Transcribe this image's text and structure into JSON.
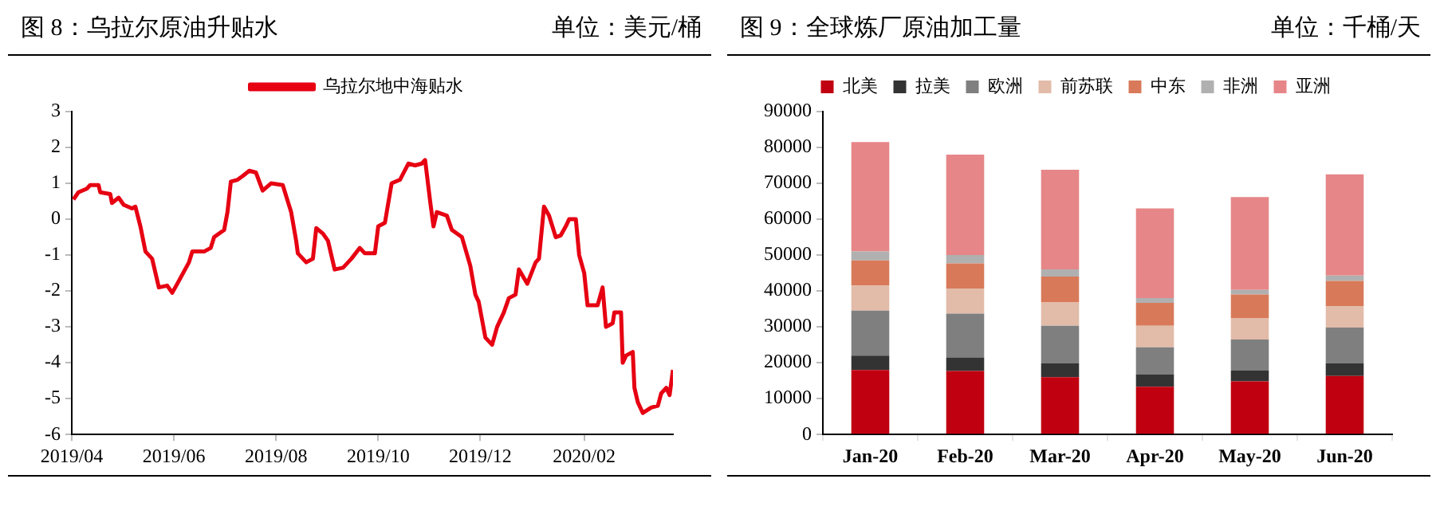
{
  "chart_data": [
    {
      "type": "line",
      "title": "图 8：乌拉尔原油升贴水",
      "subtitle": "单位：美元/桶",
      "legend": "top",
      "grid": false,
      "marker": "none",
      "line_style": "solid",
      "xlim": [
        "2019-04-01",
        "2020-03-25"
      ],
      "xticks": [
        {
          "value": "2019-04-01",
          "label": "2019/04"
        },
        {
          "value": "2019-06-01",
          "label": "2019/06"
        },
        {
          "value": "2019-08-01",
          "label": "2019/08"
        },
        {
          "value": "2019-10-01",
          "label": "2019/10"
        },
        {
          "value": "2019-12-01",
          "label": "2019/12"
        },
        {
          "value": "2020-02-01",
          "label": "2020/02"
        }
      ],
      "ylim": [
        -6,
        3
      ],
      "yticks": [
        -6,
        -5,
        -4,
        -3,
        -2,
        -1,
        0,
        1,
        2,
        3
      ],
      "series": [
        {
          "name": "乌拉尔地中海贴水",
          "color": "#e60012",
          "x": [
            "2019-04-02",
            "2019-04-05",
            "2019-04-10",
            "2019-04-12",
            "2019-04-17",
            "2019-04-18",
            "2019-04-24",
            "2019-04-25",
            "2019-04-29",
            "2019-05-02",
            "2019-05-07",
            "2019-05-09",
            "2019-05-12",
            "2019-05-15",
            "2019-05-19",
            "2019-05-23",
            "2019-05-28",
            "2019-05-31",
            "2019-06-03",
            "2019-06-10",
            "2019-06-12",
            "2019-06-19",
            "2019-06-23",
            "2019-06-25",
            "2019-07-01",
            "2019-07-03",
            "2019-07-05",
            "2019-07-09",
            "2019-07-12",
            "2019-07-16",
            "2019-07-20",
            "2019-07-24",
            "2019-07-29",
            "2019-08-05",
            "2019-08-10",
            "2019-08-13",
            "2019-08-14",
            "2019-08-19",
            "2019-08-23",
            "2019-08-25",
            "2019-08-29",
            "2019-09-01",
            "2019-09-05",
            "2019-09-10",
            "2019-09-15",
            "2019-09-20",
            "2019-09-23",
            "2019-09-29",
            "2019-10-01",
            "2019-10-05",
            "2019-10-09",
            "2019-10-14",
            "2019-10-19",
            "2019-10-23",
            "2019-10-27",
            "2019-10-29",
            "2019-11-01",
            "2019-11-03",
            "2019-11-05",
            "2019-11-11",
            "2019-11-14",
            "2019-11-20",
            "2019-11-25",
            "2019-11-28",
            "2019-11-30",
            "2019-12-04",
            "2019-12-08",
            "2019-12-11",
            "2019-12-15",
            "2019-12-18",
            "2019-12-22",
            "2019-12-24",
            "2019-12-29",
            "2020-01-03",
            "2020-01-05",
            "2020-01-08",
            "2020-01-11",
            "2020-01-15",
            "2020-01-18",
            "2020-01-21",
            "2020-01-23",
            "2020-01-27",
            "2020-01-29",
            "2020-02-01",
            "2020-02-03",
            "2020-02-09",
            "2020-02-12",
            "2020-02-14",
            "2020-02-18",
            "2020-02-19",
            "2020-02-23",
            "2020-02-24",
            "2020-02-26",
            "2020-03-01",
            "2020-03-02",
            "2020-03-04",
            "2020-03-07",
            "2020-03-12",
            "2020-03-16",
            "2020-03-18",
            "2020-03-21",
            "2020-03-23",
            "2020-03-25"
          ],
          "values": [
            0.55,
            0.75,
            0.85,
            0.95,
            0.95,
            0.75,
            0.7,
            0.45,
            0.6,
            0.4,
            0.3,
            0.35,
            -0.2,
            -0.9,
            -1.1,
            -1.9,
            -1.85,
            -2.05,
            -1.8,
            -1.2,
            -0.9,
            -0.9,
            -0.8,
            -0.5,
            -0.3,
            0.2,
            1.05,
            1.1,
            1.2,
            1.35,
            1.3,
            0.8,
            1.0,
            0.95,
            0.2,
            -0.6,
            -0.95,
            -1.2,
            -1.1,
            -0.25,
            -0.4,
            -0.6,
            -1.4,
            -1.35,
            -1.1,
            -0.8,
            -0.95,
            -0.95,
            -0.2,
            -0.1,
            1.0,
            1.1,
            1.55,
            1.5,
            1.55,
            1.65,
            0.5,
            -0.2,
            0.2,
            0.1,
            -0.3,
            -0.5,
            -1.3,
            -2.1,
            -2.3,
            -3.3,
            -3.5,
            -3.0,
            -2.6,
            -2.2,
            -2.1,
            -1.4,
            -1.8,
            -1.2,
            -1.1,
            0.35,
            0.1,
            -0.5,
            -0.45,
            -0.2,
            0.0,
            0.0,
            -1.0,
            -1.5,
            -2.4,
            -2.4,
            -1.9,
            -3.0,
            -2.9,
            -2.6,
            -2.6,
            -4.0,
            -3.8,
            -3.7,
            -4.7,
            -5.1,
            -5.4,
            -5.25,
            -5.2,
            -4.85,
            -4.7,
            -4.9,
            -4.2
          ]
        }
      ]
    },
    {
      "type": "bar",
      "stacked": true,
      "title": "图 9：全球炼厂原油加工量",
      "subtitle": "单位：千桶/天",
      "legend": "top",
      "grid": false,
      "categories": [
        "Jan-20",
        "Feb-20",
        "Mar-20",
        "Apr-20",
        "May-20",
        "Jun-20"
      ],
      "ylim": [
        0,
        90000
      ],
      "yticks": [
        0,
        10000,
        20000,
        30000,
        40000,
        50000,
        60000,
        70000,
        80000,
        90000
      ],
      "series": [
        {
          "name": "北美",
          "color": "#c00010",
          "values": [
            18000,
            17700,
            16000,
            13300,
            14800,
            16300
          ]
        },
        {
          "name": "拉美",
          "color": "#333333",
          "values": [
            4000,
            3800,
            3800,
            3400,
            3000,
            3500
          ]
        },
        {
          "name": "欧洲",
          "color": "#7f7f7f",
          "values": [
            12500,
            12200,
            10500,
            7600,
            8700,
            10000
          ]
        },
        {
          "name": "前苏联",
          "color": "#e2bba9",
          "values": [
            7000,
            7000,
            6500,
            6000,
            6000,
            6000
          ]
        },
        {
          "name": "中东",
          "color": "#d87a5a",
          "values": [
            7000,
            7000,
            7200,
            6400,
            6500,
            7000
          ]
        },
        {
          "name": "非洲",
          "color": "#b0b0b0",
          "values": [
            2500,
            2300,
            2000,
            1300,
            1300,
            1500
          ]
        },
        {
          "name": "亚洲",
          "color": "#e68688",
          "values": [
            30500,
            28000,
            27800,
            25000,
            25900,
            28200
          ]
        }
      ]
    }
  ]
}
